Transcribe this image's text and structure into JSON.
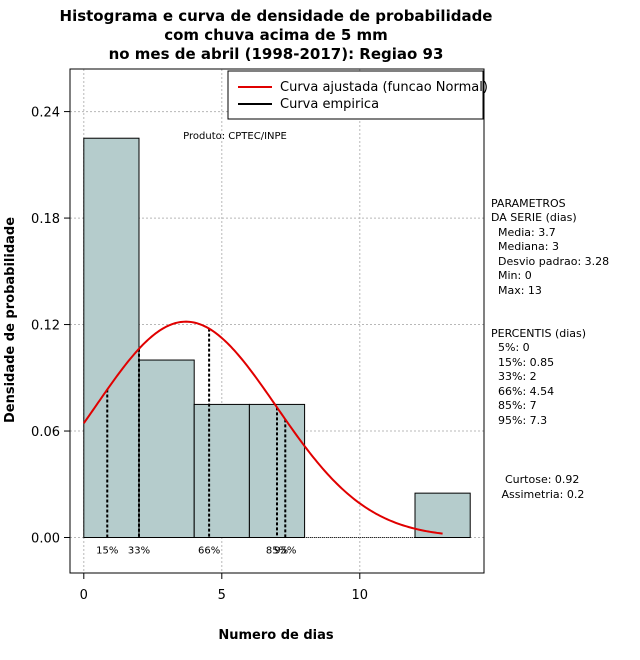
{
  "chart_data": {
    "type": "bar",
    "title_lines": [
      "Histograma e curva de densidade de probabilidade",
      "com chuva acima de 5 mm",
      "no mes de abril (1998-2017): Regiao 93"
    ],
    "xlabel": "Numero de dias",
    "ylabel": "Densidade de probabilidade",
    "xlim": [
      -0.5,
      14.5
    ],
    "ylim": [
      -0.02,
      0.264
    ],
    "x_ticks": [
      0,
      5,
      10
    ],
    "y_ticks": [
      0.0,
      0.06,
      0.12,
      0.18,
      0.24
    ],
    "y_tick_labels": [
      "0.00",
      "0.06",
      "0.12",
      "0.18",
      "0.24"
    ],
    "grid_x": [
      0,
      5,
      10
    ],
    "grid_y": [
      0.0,
      0.06,
      0.12,
      0.18,
      0.24
    ],
    "bins": [
      {
        "x0": 0,
        "x1": 2,
        "density": 0.225
      },
      {
        "x0": 2,
        "x1": 4,
        "density": 0.1
      },
      {
        "x0": 4,
        "x1": 6,
        "density": 0.075
      },
      {
        "x0": 6,
        "x1": 8,
        "density": 0.075
      },
      {
        "x0": 8,
        "x1": 10,
        "density": 0
      },
      {
        "x0": 10,
        "x1": 12,
        "density": 0
      },
      {
        "x0": 12,
        "x1": 14,
        "density": 0.025
      }
    ],
    "bar_color": "#b5cccc",
    "normal_fit": {
      "mean": 3.7,
      "sd": 3.28,
      "x_from": 0,
      "x_to": 13,
      "color": "#e00000"
    },
    "percentile_lines": [
      {
        "label": "15%",
        "x": 0.85
      },
      {
        "label": "33%",
        "x": 2
      },
      {
        "label": "66%",
        "x": 4.54
      },
      {
        "label": "85%",
        "x": 7
      },
      {
        "label": "95%",
        "x": 7.3
      }
    ],
    "legend": {
      "position": "top-right",
      "entries": [
        {
          "label": "Curva ajustada (funcao Normal)",
          "color": "#e00000"
        },
        {
          "label": "Curva empirica",
          "color": "#000000"
        }
      ]
    },
    "annotation": "Produto: CPTEC/INPE"
  },
  "side_panel": {
    "params_lines": [
      "PARAMETROS",
      "DA SERIE (dias)",
      "  Media: 3.7",
      "  Mediana: 3",
      "  Desvio padrao: 3.28",
      "  Min: 0",
      "  Max: 13"
    ],
    "percentis_lines": [
      "PERCENTIS (dias)",
      "  5%: 0",
      "  15%: 0.85",
      "  33%: 2",
      "  66%: 4.54",
      "  85%: 7",
      "  95%: 7.3"
    ],
    "shape_lines": [
      "  Curtose: 0.92",
      " Assimetria: 0.2"
    ]
  }
}
